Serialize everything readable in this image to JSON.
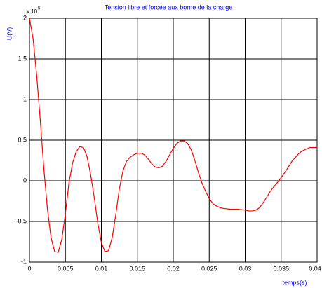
{
  "chart_data": {
    "type": "line",
    "title": "Tension libre et forcée aux borne de la charge",
    "xlabel": "temps(s)",
    "ylabel": "U(V)",
    "y_multiplier": {
      "base": "x 10",
      "exponent": "5"
    },
    "color": "#ff0000",
    "grid": true,
    "xlim": [
      0,
      0.04
    ],
    "xticks": [
      0,
      0.005,
      0.01,
      0.015,
      0.02,
      0.025,
      0.03,
      0.035,
      0.04
    ],
    "ylim": [
      -1,
      2
    ],
    "yticks": [
      -1,
      -0.5,
      0,
      0.5,
      1,
      1.5,
      2
    ],
    "x": [
      0,
      0.0005,
      0.001,
      0.0015,
      0.002,
      0.0025,
      0.003,
      0.0035,
      0.004,
      0.0045,
      0.005,
      0.0055,
      0.006,
      0.0065,
      0.007,
      0.0075,
      0.008,
      0.0085,
      0.009,
      0.0095,
      0.01,
      0.0105,
      0.011,
      0.0115,
      0.012,
      0.0125,
      0.013,
      0.0135,
      0.014,
      0.0145,
      0.015,
      0.0155,
      0.016,
      0.0165,
      0.017,
      0.0175,
      0.018,
      0.0185,
      0.019,
      0.0195,
      0.02,
      0.0205,
      0.021,
      0.0215,
      0.022,
      0.0225,
      0.023,
      0.0235,
      0.024,
      0.0245,
      0.025,
      0.0255,
      0.026,
      0.0265,
      0.027,
      0.028,
      0.029,
      0.03,
      0.0305,
      0.031,
      0.0315,
      0.032,
      0.0325,
      0.033,
      0.0335,
      0.034,
      0.0345,
      0.035,
      0.0355,
      0.036,
      0.0365,
      0.037,
      0.0375,
      0.038,
      0.0385,
      0.039,
      0.0395,
      0.04
    ],
    "values": [
      2,
      1.75,
      1.3,
      0.75,
      0.15,
      -0.35,
      -0.7,
      -0.87,
      -0.88,
      -0.72,
      -0.4,
      -0.02,
      0.22,
      0.36,
      0.42,
      0.41,
      0.3,
      0.08,
      -0.2,
      -0.52,
      -0.76,
      -0.87,
      -0.86,
      -0.7,
      -0.42,
      -0.1,
      0.12,
      0.24,
      0.29,
      0.32,
      0.34,
      0.34,
      0.32,
      0.27,
      0.21,
      0.17,
      0.16,
      0.18,
      0.24,
      0.32,
      0.4,
      0.46,
      0.49,
      0.49,
      0.46,
      0.38,
      0.25,
      0.1,
      -0.03,
      -0.13,
      -0.22,
      -0.28,
      -0.31,
      -0.33,
      -0.34,
      -0.35,
      -0.35,
      -0.36,
      -0.37,
      -0.37,
      -0.36,
      -0.33,
      -0.27,
      -0.2,
      -0.13,
      -0.07,
      -0.02,
      0.04,
      0.1,
      0.17,
      0.24,
      0.29,
      0.34,
      0.37,
      0.39,
      0.41,
      0.41,
      0.41
    ]
  }
}
